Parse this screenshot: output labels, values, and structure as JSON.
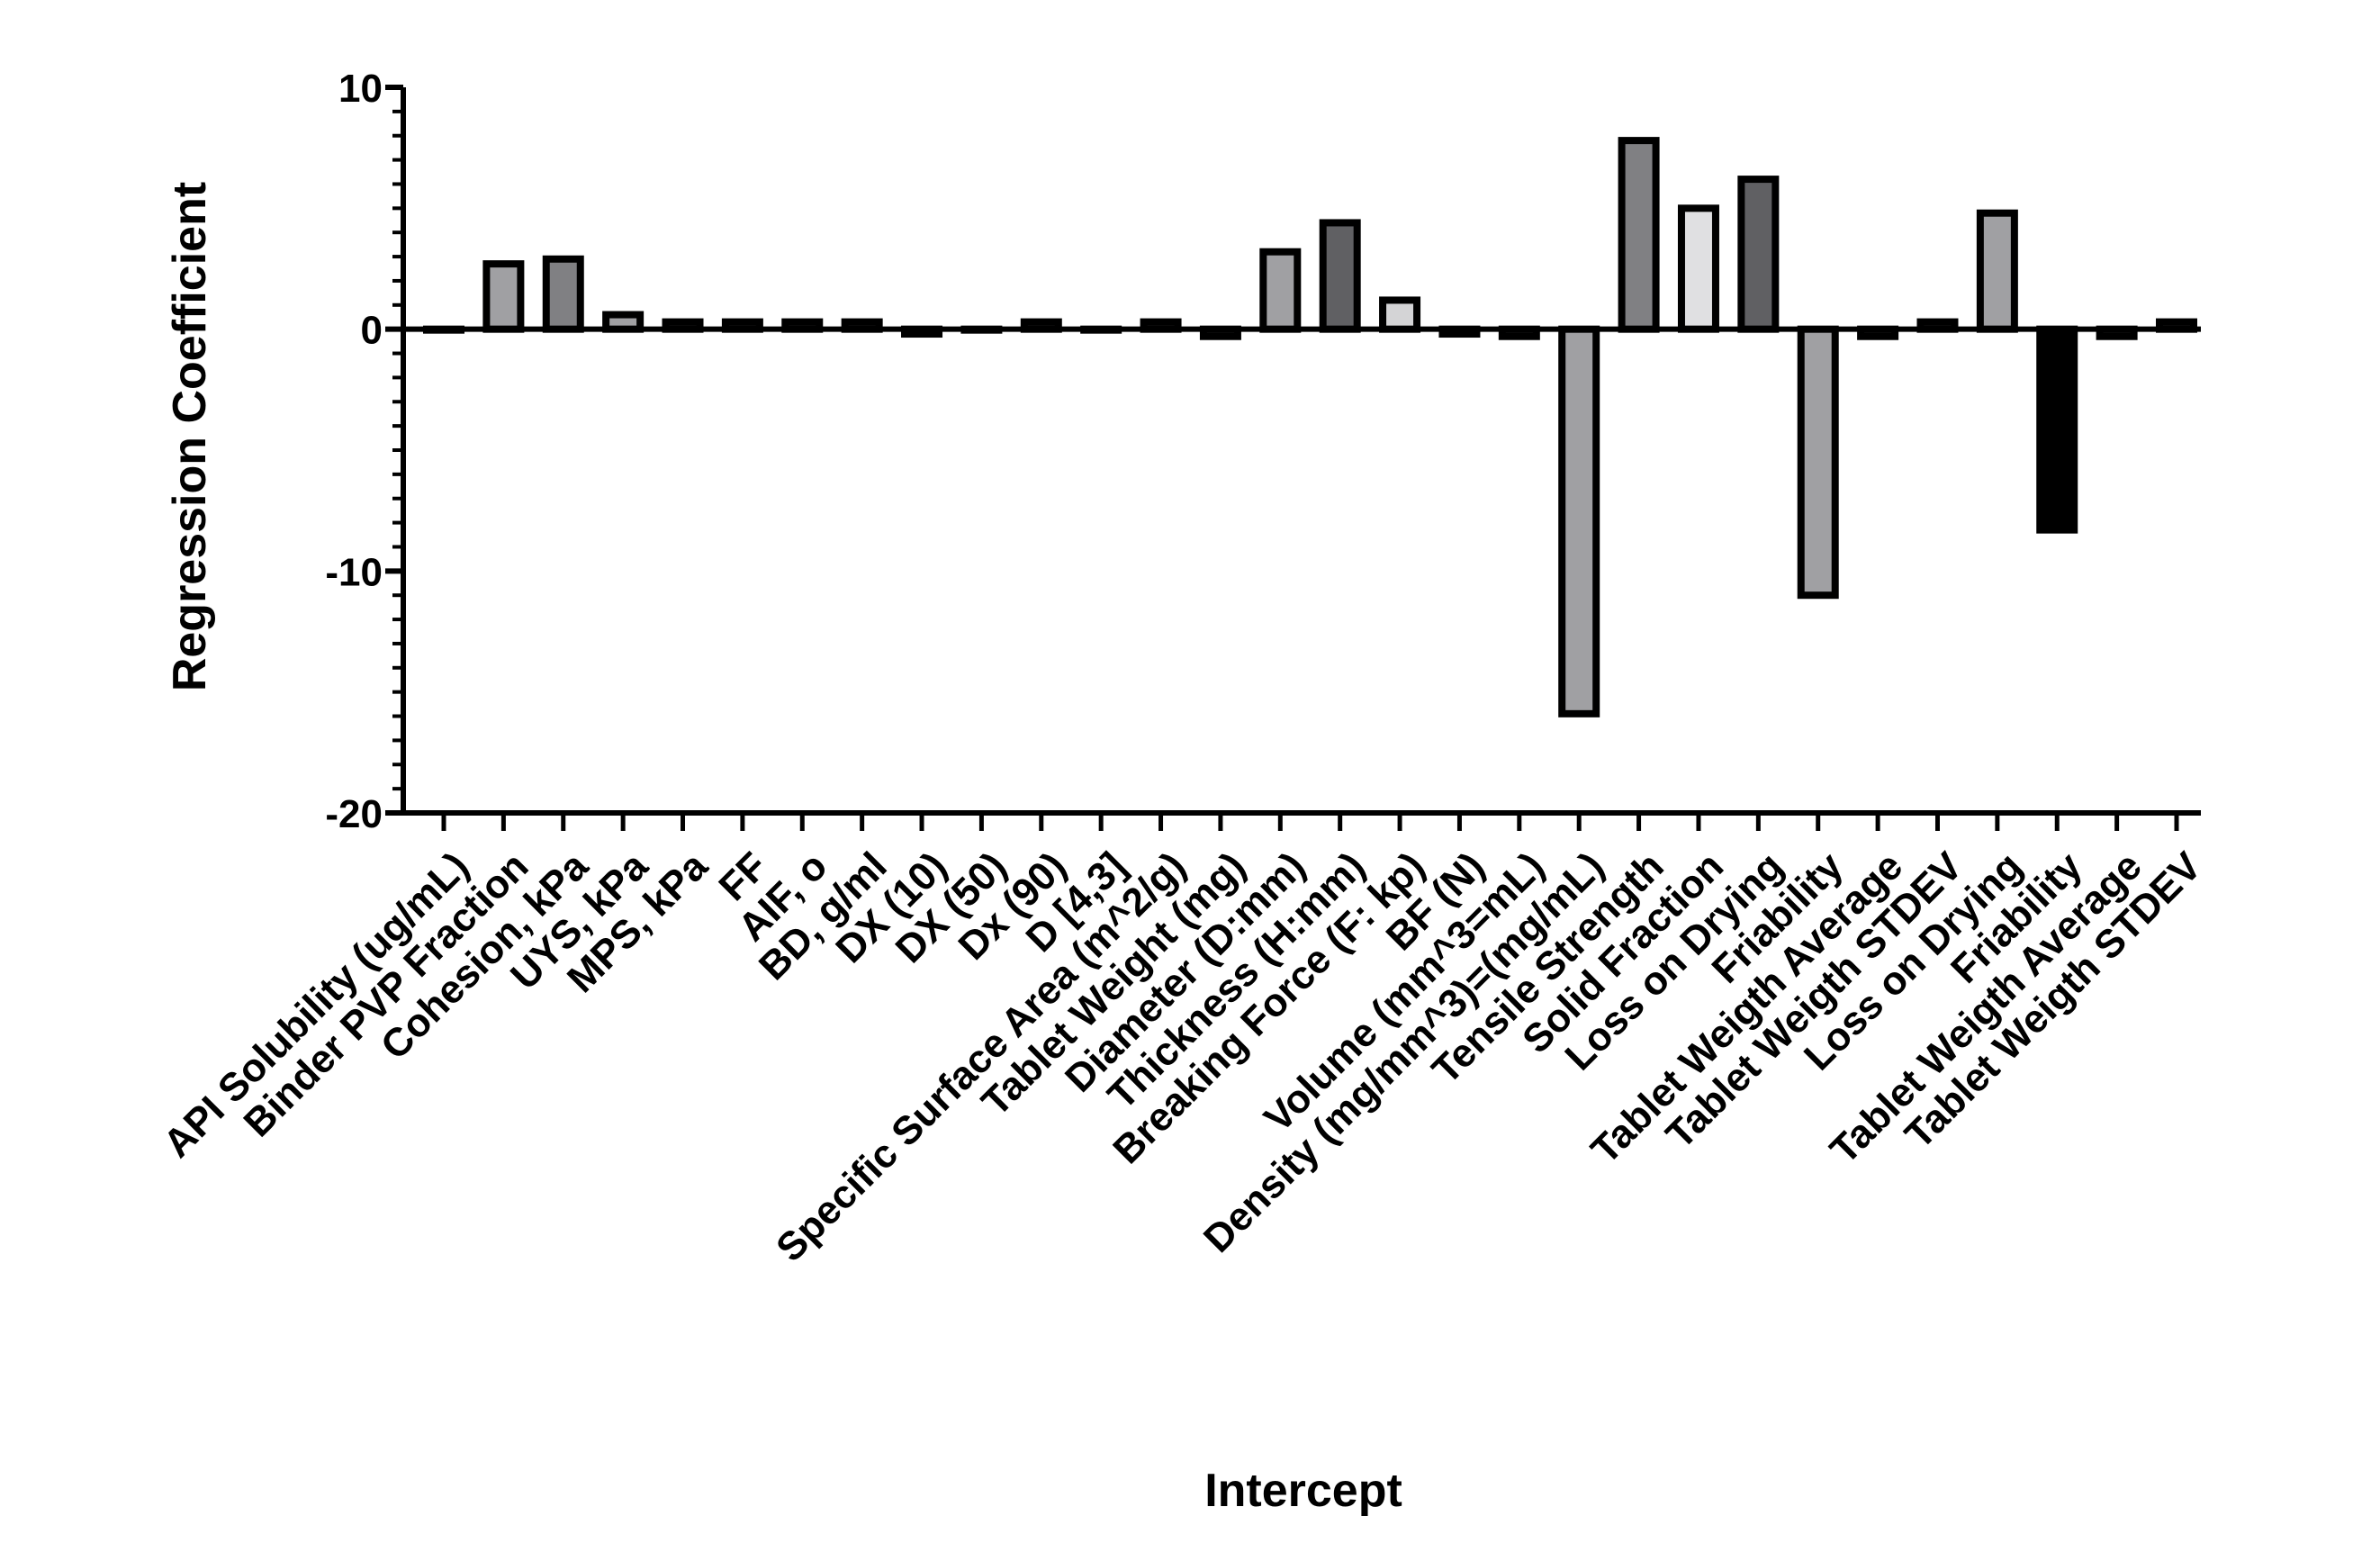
{
  "chart_data": {
    "type": "bar",
    "title": "",
    "xlabel": "Intercept",
    "ylabel": "Regression Coefficient",
    "ylim": [
      -20,
      10
    ],
    "yticks": [
      "10",
      "0",
      "-10",
      "-20"
    ],
    "grid": false,
    "legend": "none",
    "categories": [
      "API Solubility (ug/mL)",
      "Binder PVP Fraction",
      "Cohesion, kPa",
      "UYS, kPa",
      "MPS, kPa",
      "FF",
      "AIF, o",
      "BD, g/ml",
      "DX (10)",
      "DX (50)",
      "Dx (90)",
      "D [4,3]",
      "Specific Surface Area (m^2/g)",
      "Tablet Weight (mg)",
      "Diameter (D:mm)",
      "Thickness (H:mm)",
      "Breaking Force (F: kp)",
      "BF (N)",
      "Volume (mm^3=mL)",
      "Density (mg/mm^3)=(mg/mL)",
      "Tensile Strength",
      "Solid Fraction",
      "Loss on Drying",
      "Friability",
      "Tablet Weigth Average",
      "Tablet Weigth STDEV",
      "Loss on Drying",
      "Friability",
      "Tablet Weigth Average",
      "Tablet Weigth STDEV"
    ],
    "values": [
      0,
      2.7,
      2.9,
      0.6,
      0.3,
      0.3,
      0.3,
      0.3,
      -0.2,
      0,
      0.3,
      0,
      0.3,
      -0.3,
      3.2,
      4.4,
      1.2,
      -0.2,
      -0.3,
      -15.9,
      7.8,
      5.0,
      6.2,
      -11.0,
      -0.3,
      0.3,
      4.8,
      -8.3,
      -0.3,
      0.3
    ],
    "colors": [
      "#a0a0a3",
      "#a0a0a3",
      "#808083",
      "#a0a0a3",
      "#a0a0a3",
      "#a0a0a3",
      "#a0a0a3",
      "#a0a0a3",
      "#a0a0a3",
      "#a0a0a3",
      "#a0a0a3",
      "#a0a0a3",
      "#a0a0a3",
      "#a0a0a3",
      "#a0a0a3",
      "#606063",
      "#d4d4d6",
      "#a0a0a3",
      "#a0a0a3",
      "#a0a0a3",
      "#808083",
      "#e0e0e2",
      "#606063",
      "#a0a0a3",
      "#a0a0a3",
      "#a0a0a3",
      "#a0a0a3",
      "#000000",
      "#a0a0a3",
      "#a0a0a3"
    ]
  }
}
